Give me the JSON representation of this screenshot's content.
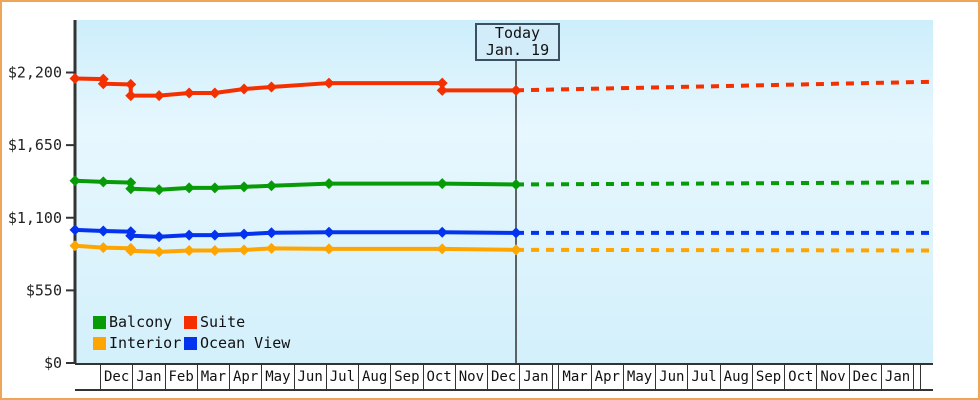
{
  "today_marker": {
    "line1": "Today",
    "line2": "Jan. 19"
  },
  "legend": [
    {
      "label": "Balcony",
      "color": "#089b08"
    },
    {
      "label": "Suite",
      "color": "#f53000"
    },
    {
      "label": "Interior",
      "color": "#ffa500"
    },
    {
      "label": "Ocean View",
      "color": "#0433f0"
    }
  ],
  "colors": {
    "axis": "#333333",
    "page_border": "#efa557",
    "plot_bg_top": "#cdeefb",
    "plot_bg_mid": "#e7f7fe",
    "plot_bg_bottom": "#d3f0fb",
    "today_box_bg": "#d2ecfa",
    "today_box_border": "#3b5161"
  },
  "chart_data": {
    "type": "line",
    "title": "",
    "xlabel": "",
    "ylabel": "",
    "ylim": [
      0,
      2200
    ],
    "grid": false,
    "legend_position": "bottom-left",
    "yticks": [
      {
        "value": 0,
        "label": "$0"
      },
      {
        "value": 550,
        "label": "$550"
      },
      {
        "value": 1100,
        "label": "$1,100"
      },
      {
        "value": 1650,
        "label": "$1,650"
      },
      {
        "value": 2200,
        "label": "$2,200"
      }
    ],
    "x_axis_months": [
      "",
      "Dec",
      "Jan",
      "Feb",
      "Mar",
      "Apr",
      "May",
      "Jun",
      "Jul",
      "Aug",
      "Sep",
      "Oct",
      "Nov",
      "Dec",
      "Jan",
      "",
      "Mar",
      "Apr",
      "May",
      "Jun",
      "Jul",
      "Aug",
      "Sep",
      "Oct",
      "Nov",
      "Dec",
      "Jan",
      "",
      ""
    ],
    "today": {
      "t": 0.514,
      "date_label": "Jan. 19"
    },
    "series": [
      {
        "name": "Suite",
        "color": "#f53000",
        "history": [
          [
            0,
            2155
          ],
          [
            0.033,
            2150
          ],
          [
            0.033,
            2115
          ],
          [
            0.065,
            2110
          ],
          [
            0.065,
            2025
          ],
          [
            0.098,
            2025
          ],
          [
            0.133,
            2045
          ],
          [
            0.163,
            2045
          ],
          [
            0.197,
            2075
          ],
          [
            0.229,
            2090
          ],
          [
            0.296,
            2120
          ],
          [
            0.428,
            2120
          ],
          [
            0.428,
            2065
          ],
          [
            0.514,
            2065
          ]
        ],
        "forecast": [
          [
            0.514,
            2065
          ],
          [
            1,
            2130
          ]
        ]
      },
      {
        "name": "Balcony",
        "color": "#089b08",
        "history": [
          [
            0,
            1380
          ],
          [
            0.033,
            1372
          ],
          [
            0.065,
            1366
          ],
          [
            0.065,
            1320
          ],
          [
            0.098,
            1312
          ],
          [
            0.133,
            1326
          ],
          [
            0.163,
            1326
          ],
          [
            0.197,
            1334
          ],
          [
            0.229,
            1342
          ],
          [
            0.296,
            1358
          ],
          [
            0.428,
            1358
          ],
          [
            0.514,
            1352
          ]
        ],
        "forecast": [
          [
            0.514,
            1352
          ],
          [
            1,
            1368
          ]
        ]
      },
      {
        "name": "Ocean View",
        "color": "#0433f0",
        "history": [
          [
            0,
            1008
          ],
          [
            0.033,
            1000
          ],
          [
            0.065,
            994
          ],
          [
            0.065,
            964
          ],
          [
            0.098,
            956
          ],
          [
            0.133,
            968
          ],
          [
            0.163,
            968
          ],
          [
            0.197,
            976
          ],
          [
            0.229,
            986
          ],
          [
            0.296,
            990
          ],
          [
            0.428,
            990
          ],
          [
            0.514,
            985
          ]
        ],
        "forecast": [
          [
            0.514,
            985
          ],
          [
            1,
            985
          ]
        ]
      },
      {
        "name": "Interior",
        "color": "#ffa500",
        "history": [
          [
            0,
            888
          ],
          [
            0.033,
            874
          ],
          [
            0.065,
            868
          ],
          [
            0.065,
            850
          ],
          [
            0.098,
            842
          ],
          [
            0.133,
            852
          ],
          [
            0.163,
            852
          ],
          [
            0.197,
            856
          ],
          [
            0.229,
            868
          ],
          [
            0.296,
            864
          ],
          [
            0.428,
            864
          ],
          [
            0.514,
            857
          ]
        ],
        "forecast": [
          [
            0.514,
            857
          ],
          [
            1,
            852
          ]
        ]
      }
    ]
  }
}
